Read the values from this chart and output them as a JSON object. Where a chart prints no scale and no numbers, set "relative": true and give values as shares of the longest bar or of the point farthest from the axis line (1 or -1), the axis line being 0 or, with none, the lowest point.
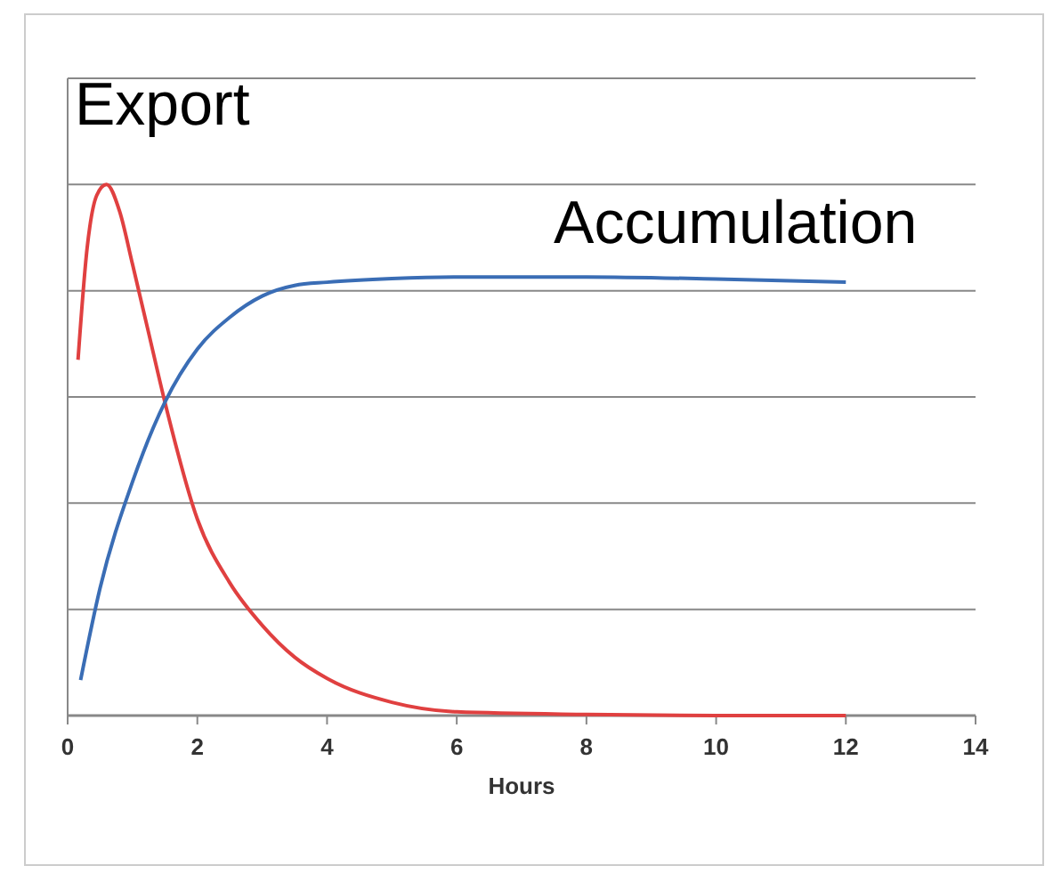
{
  "chart_data": {
    "type": "line",
    "relative": true,
    "legend": false,
    "xlabel": "Hours",
    "xlim": [
      0,
      14
    ],
    "xticks": [
      0,
      2,
      4,
      6,
      8,
      10,
      12,
      14
    ],
    "grid": "y",
    "marker": "none",
    "line_style": "solid",
    "series": [
      {
        "name": "Export",
        "color": "#e04040",
        "x": [
          0.16,
          0.3,
          0.45,
          0.6,
          0.8,
          1,
          1.25,
          1.5,
          2,
          2.5,
          3,
          3.5,
          4,
          5,
          6,
          8,
          10,
          12
        ],
        "values": [
          0.67,
          0.88,
          0.98,
          1,
          0.95,
          0.85,
          0.72,
          0.59,
          0.37,
          0.25,
          0.17,
          0.11,
          0.07,
          0.025,
          0.007,
          0.002,
          0,
          0
        ]
      },
      {
        "name": "Accumulation",
        "color": "#3a6db5",
        "x": [
          0.2,
          0.5,
          1,
          1.5,
          2,
          2.5,
          3,
          3.5,
          4,
          5,
          6,
          8,
          10,
          12
        ],
        "values": [
          0.067,
          0.24,
          0.44,
          0.59,
          0.69,
          0.75,
          0.79,
          0.81,
          0.816,
          0.823,
          0.826,
          0.826,
          0.822,
          0.816
        ]
      }
    ]
  }
}
